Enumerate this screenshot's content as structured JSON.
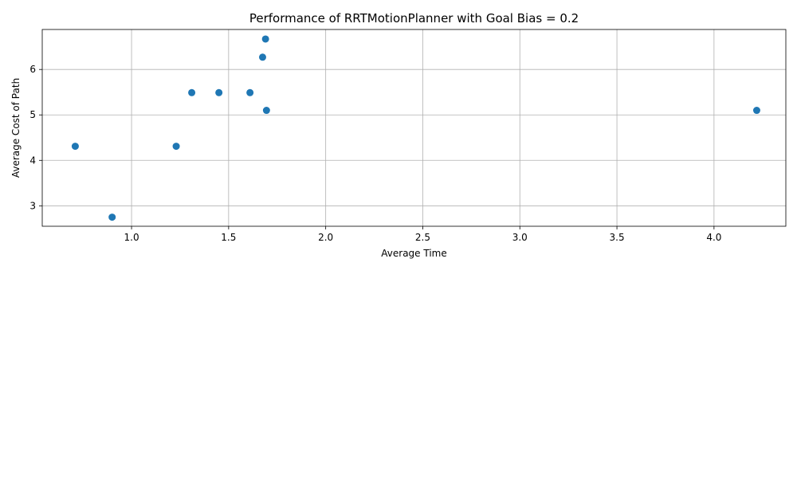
{
  "chart_data": {
    "type": "scatter",
    "title": "Performance of RRTMotionPlanner with Goal Bias = 0.2",
    "xlabel": "Average Time",
    "ylabel": "Average Cost of Path",
    "xlim": [
      0.54,
      4.37
    ],
    "ylim": [
      2.55,
      6.88
    ],
    "grid": true,
    "marker_color": "#1f77b4",
    "x_ticks": [
      1.0,
      1.5,
      2.0,
      2.5,
      3.0,
      3.5,
      4.0
    ],
    "x_tick_labels": [
      "1.0",
      "1.5",
      "2.0",
      "2.5",
      "3.0",
      "3.5",
      "4.0"
    ],
    "y_ticks": [
      3,
      4,
      5,
      6
    ],
    "y_tick_labels": [
      "3",
      "4",
      "5",
      "6"
    ],
    "points": [
      {
        "x": 0.71,
        "y": 4.31
      },
      {
        "x": 0.9,
        "y": 2.75
      },
      {
        "x": 1.23,
        "y": 4.31
      },
      {
        "x": 1.31,
        "y": 5.49
      },
      {
        "x": 1.45,
        "y": 5.49
      },
      {
        "x": 1.61,
        "y": 5.49
      },
      {
        "x": 1.675,
        "y": 6.27
      },
      {
        "x": 1.69,
        "y": 6.67
      },
      {
        "x": 1.695,
        "y": 5.1
      },
      {
        "x": 4.22,
        "y": 5.1
      }
    ]
  }
}
